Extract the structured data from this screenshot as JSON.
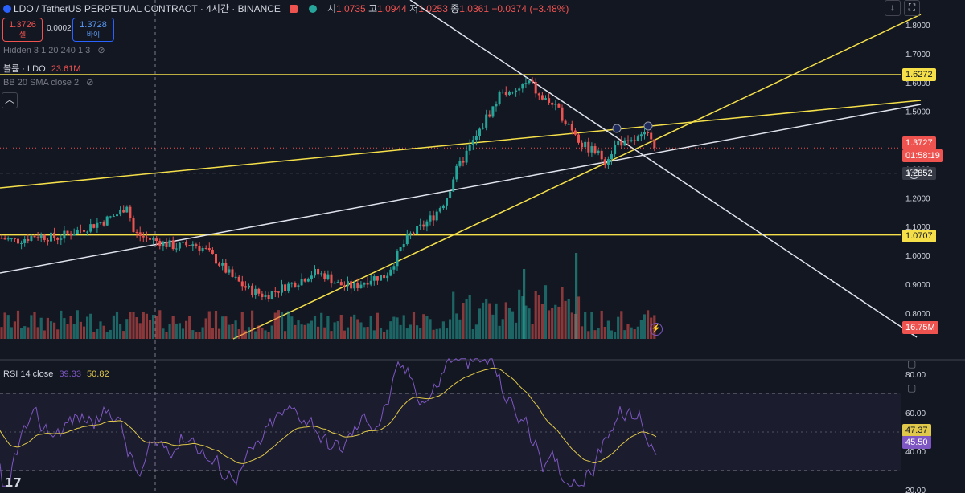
{
  "header": {
    "symbol": "LDO / TetherUS PERPETUAL CONTRACT · 4시간 · BINANCE",
    "o_label": "시",
    "o_value": "1.0735",
    "h_label": "고",
    "h_value": "1.0944",
    "l_label": "저",
    "l_value": "1.0253",
    "c_label": "종",
    "c_value": "1.0361",
    "change": "−0.0374 (−3.48%)"
  },
  "trade": {
    "sell_price": "1.3726",
    "sell_label": "셀",
    "spread": "0.0002",
    "buy_price": "1.3728",
    "buy_label": "바이"
  },
  "indicators": {
    "hidden": "Hidden 3 1 20 240 1 3",
    "volume_label": "볼륨 · LDO",
    "volume_value": "23.61M",
    "bb": "BB 20 SMA close 2",
    "rsi_label": "RSI 14 close",
    "rsi_value": "39.33",
    "rsi_ma_value": "50.82"
  },
  "price_axis": {
    "ticks": [
      "1.8000",
      "1.7000",
      "1.6000",
      "1.5000",
      "1.4000",
      "1.3000",
      "1.2000",
      "1.1000",
      "1.0000",
      "0.9000",
      "0.8000"
    ],
    "label_top": "1.6272",
    "label_current": "1.3727",
    "label_countdown": "01:58:19",
    "label_crosshair": "1.2852",
    "label_bottom": "1.0707",
    "label_volume": "16.75M"
  },
  "rsi_axis": {
    "ticks": [
      "80.00",
      "60.00",
      "40.00",
      "20.00"
    ],
    "label_a": "47.37",
    "label_b": "45.50"
  },
  "colors": {
    "up": "#26a69a",
    "down": "#ef5350",
    "yellow": "#f5e04a",
    "white": "#e0e3eb",
    "rsi": "#7e57c2",
    "rsi_ma": "#e0c84a",
    "bg": "#131722"
  },
  "chart_data": {
    "type": "candlestick",
    "symbol": "LDO/USDT",
    "timeframe": "4시간",
    "y_axis": {
      "min": 0.75,
      "max": 1.85
    },
    "horizontal_levels": [
      1.6272,
      1.0707
    ],
    "current_price": 1.3727,
    "crosshair_price": 1.2852,
    "volume_last": "16.75M",
    "rsi": {
      "period": 14,
      "value": 39.33,
      "ma_value": 50.82,
      "band_upper": 70,
      "band_lower": 30,
      "y_range": [
        20,
        80
      ]
    },
    "close_path": [
      [
        0,
        1.06
      ],
      [
        20,
        1.05
      ],
      [
        45,
        1.07
      ],
      [
        70,
        1.06
      ],
      [
        100,
        1.09
      ],
      [
        130,
        1.12
      ],
      [
        150,
        1.15
      ],
      [
        158,
        1.18
      ],
      [
        166,
        1.08
      ],
      [
        180,
        1.06
      ],
      [
        195,
        1.05
      ],
      [
        205,
        1.04
      ],
      [
        220,
        1.03
      ],
      [
        240,
        1.04
      ],
      [
        255,
        1.02
      ],
      [
        270,
        0.98
      ],
      [
        290,
        0.92
      ],
      [
        310,
        0.88
      ],
      [
        330,
        0.86
      ],
      [
        345,
        0.88
      ],
      [
        370,
        0.91
      ],
      [
        390,
        0.94
      ],
      [
        405,
        0.93
      ],
      [
        420,
        0.9
      ],
      [
        440,
        0.89
      ],
      [
        460,
        0.92
      ],
      [
        480,
        0.93
      ],
      [
        490,
        0.98
      ],
      [
        500,
        1.03
      ],
      [
        510,
        1.07
      ],
      [
        525,
        1.1
      ],
      [
        540,
        1.14
      ],
      [
        555,
        1.2
      ],
      [
        565,
        1.28
      ],
      [
        575,
        1.33
      ],
      [
        585,
        1.38
      ],
      [
        595,
        1.42
      ],
      [
        605,
        1.48
      ],
      [
        615,
        1.52
      ],
      [
        625,
        1.58
      ],
      [
        635,
        1.55
      ],
      [
        650,
        1.59
      ],
      [
        660,
        1.6
      ],
      [
        670,
        1.55
      ],
      [
        685,
        1.53
      ],
      [
        700,
        1.48
      ],
      [
        715,
        1.43
      ],
      [
        725,
        1.38
      ],
      [
        740,
        1.36
      ],
      [
        752,
        1.33
      ],
      [
        760,
        1.36
      ],
      [
        770,
        1.4
      ],
      [
        780,
        1.38
      ],
      [
        790,
        1.4
      ],
      [
        800,
        1.41
      ],
      [
        810,
        1.42
      ],
      [
        816,
        1.37
      ]
    ]
  }
}
